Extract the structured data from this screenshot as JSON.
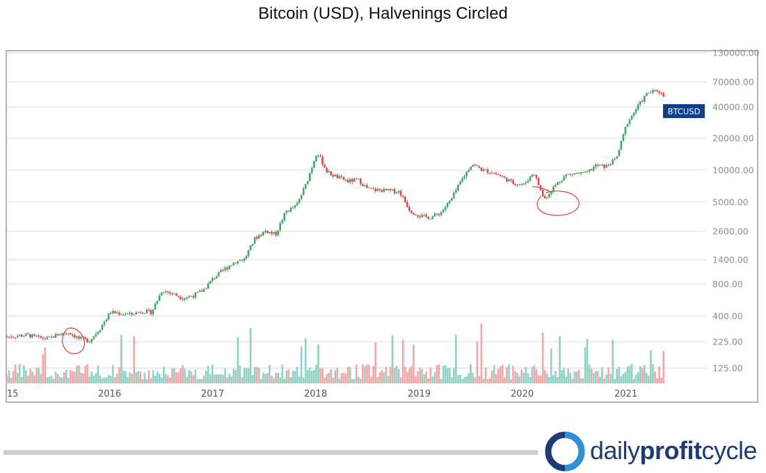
{
  "page_title": "Bitcoin (USD), Halvenings Circled",
  "brand": {
    "part1": "daily",
    "part2": "profit",
    "part3": "cycle",
    "color": "#1f3b73"
  },
  "colors": {
    "up": "#3fa866",
    "down": "#e2484a",
    "vol_up": "#8fd1c4",
    "vol_down": "#f2a6a6",
    "grid": "#d6d9e0",
    "circle": "#e23a3a",
    "label_bg": "#0d3f8a"
  },
  "chart_data": {
    "type": "candlestick",
    "title": "Bitcoin (USD), Halvenings Circled",
    "symbol_label": "BTCUSD",
    "scale": "log",
    "ylim": [
      100,
      130000
    ],
    "y_ticks": [
      "130000.00",
      "70000.00",
      "40000.00",
      "20000.00",
      "10000.00",
      "5000.00",
      "2600.00",
      "1400.00",
      "800.00",
      "400.00",
      "225.00",
      "125.00"
    ],
    "x_ticks": [
      "15",
      "2016",
      "2017",
      "2018",
      "2019",
      "2020",
      "2021"
    ],
    "grid": true,
    "series": [
      {
        "x": [
          2015.0,
          2015.1,
          2015.2,
          2015.3,
          2015.4,
          2015.5,
          2015.6,
          2015.7,
          2015.8,
          2015.9,
          2016.0,
          2016.1,
          2016.2,
          2016.3,
          2016.4,
          2016.5,
          2016.6,
          2016.7,
          2016.8,
          2016.9,
          2017.0,
          2017.1,
          2017.2,
          2017.3,
          2017.4,
          2017.5,
          2017.6,
          2017.7,
          2017.8,
          2017.9,
          2018.0,
          2018.1,
          2018.2,
          2018.3,
          2018.4,
          2018.5,
          2018.6,
          2018.7,
          2018.8,
          2018.9,
          2019.0,
          2019.1,
          2019.2,
          2019.3,
          2019.4,
          2019.5,
          2019.6,
          2019.7,
          2019.8,
          2019.9,
          2020.0,
          2020.1,
          2020.2,
          2020.3,
          2020.4,
          2020.5,
          2020.6,
          2020.7,
          2020.8,
          2020.9,
          2021.0,
          2021.1,
          2021.2,
          2021.3,
          2021.4
        ],
        "y": [
          250,
          255,
          260,
          245,
          240,
          265,
          275,
          240,
          230,
          300,
          430,
          420,
          410,
          440,
          430,
          700,
          650,
          590,
          620,
          700,
          920,
          1100,
          1300,
          1400,
          2200,
          2600,
          2400,
          4000,
          4500,
          7500,
          15000,
          9500,
          8500,
          7800,
          8000,
          6500,
          6400,
          6300,
          6200,
          4100,
          3600,
          3500,
          3900,
          5200,
          8000,
          11500,
          10000,
          9500,
          8500,
          7500,
          7200,
          9500,
          5200,
          7000,
          8800,
          9300,
          9200,
          11000,
          10800,
          13000,
          28000,
          40000,
          55000,
          58000,
          47000
        ]
      }
    ],
    "annotations": [
      "BTCUSD"
    ]
  }
}
